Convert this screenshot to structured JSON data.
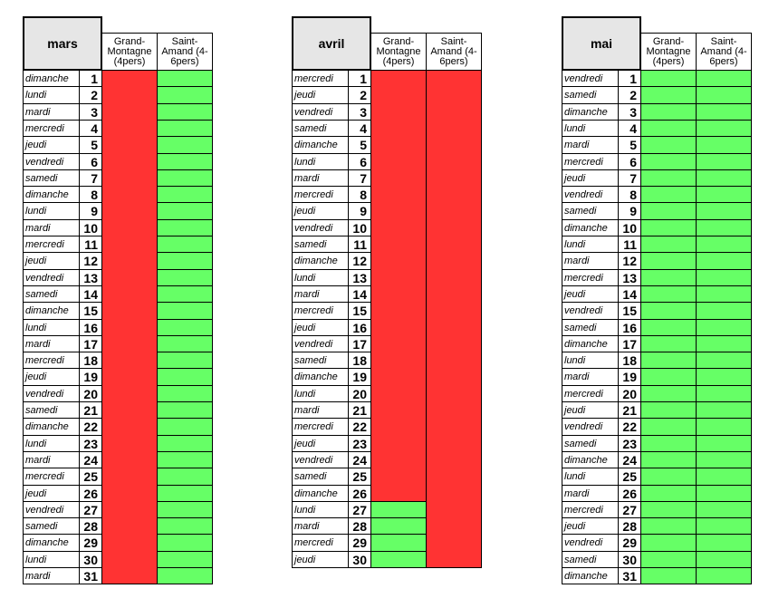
{
  "status_colors": {
    "booked": "#ff3333",
    "free": "#66ff66"
  },
  "months": [
    {
      "title": "mars",
      "rows": [
        [
          "dimanche",
          1
        ],
        [
          "lundi",
          2
        ],
        [
          "mardi",
          3
        ],
        [
          "mercredi",
          4
        ],
        [
          "jeudi",
          5
        ],
        [
          "vendredi",
          6
        ],
        [
          "samedi",
          7
        ],
        [
          "dimanche",
          8
        ],
        [
          "lundi",
          9
        ],
        [
          "mardi",
          10
        ],
        [
          "mercredi",
          11
        ],
        [
          "jeudi",
          12
        ],
        [
          "vendredi",
          13
        ],
        [
          "samedi",
          14
        ],
        [
          "dimanche",
          15
        ],
        [
          "lundi",
          16
        ],
        [
          "mardi",
          17
        ],
        [
          "mercredi",
          18
        ],
        [
          "jeudi",
          19
        ],
        [
          "vendredi",
          20
        ],
        [
          "samedi",
          21
        ],
        [
          "dimanche",
          22
        ],
        [
          "lundi",
          23
        ],
        [
          "mardi",
          24
        ],
        [
          "mercredi",
          25
        ],
        [
          "jeudi",
          26
        ],
        [
          "vendredi",
          27
        ],
        [
          "samedi",
          28
        ],
        [
          "dimanche",
          29
        ],
        [
          "lundi",
          30
        ],
        [
          "mardi",
          31
        ]
      ],
      "columns": [
        {
          "name": "Grand-Montagne (4pers)",
          "status": [
            "booked",
            "booked",
            "booked",
            "booked",
            "booked",
            "booked",
            "booked",
            "booked",
            "booked",
            "booked",
            "booked",
            "booked",
            "booked",
            "booked",
            "booked",
            "booked",
            "booked",
            "booked",
            "booked",
            "booked",
            "booked",
            "booked",
            "booked",
            "booked",
            "booked",
            "booked",
            "booked",
            "booked",
            "booked",
            "booked",
            "booked"
          ]
        },
        {
          "name": "Saint-Amand (4-6pers)",
          "status": [
            "free",
            "free",
            "free",
            "free",
            "free",
            "free",
            "free",
            "free",
            "free",
            "free",
            "free",
            "free",
            "free",
            "free",
            "free",
            "free",
            "free",
            "free",
            "free",
            "free",
            "free",
            "free",
            "free",
            "free",
            "free",
            "free",
            "free",
            "free",
            "free",
            "free",
            "free"
          ]
        }
      ]
    },
    {
      "title": "avril",
      "rows": [
        [
          "mercredi",
          1
        ],
        [
          "jeudi",
          2
        ],
        [
          "vendredi",
          3
        ],
        [
          "samedi",
          4
        ],
        [
          "dimanche",
          5
        ],
        [
          "lundi",
          6
        ],
        [
          "mardi",
          7
        ],
        [
          "mercredi",
          8
        ],
        [
          "jeudi",
          9
        ],
        [
          "vendredi",
          10
        ],
        [
          "samedi",
          11
        ],
        [
          "dimanche",
          12
        ],
        [
          "lundi",
          13
        ],
        [
          "mardi",
          14
        ],
        [
          "mercredi",
          15
        ],
        [
          "jeudi",
          16
        ],
        [
          "vendredi",
          17
        ],
        [
          "samedi",
          18
        ],
        [
          "dimanche",
          19
        ],
        [
          "lundi",
          20
        ],
        [
          "mardi",
          21
        ],
        [
          "mercredi",
          22
        ],
        [
          "jeudi",
          23
        ],
        [
          "vendredi",
          24
        ],
        [
          "samedi",
          25
        ],
        [
          "dimanche",
          26
        ],
        [
          "lundi",
          27
        ],
        [
          "mardi",
          28
        ],
        [
          "mercredi",
          29
        ],
        [
          "jeudi",
          30
        ]
      ],
      "columns": [
        {
          "name": "Grand-Montagne (4pers)",
          "status": [
            "booked",
            "booked",
            "booked",
            "booked",
            "booked",
            "booked",
            "booked",
            "booked",
            "booked",
            "booked",
            "booked",
            "booked",
            "booked",
            "booked",
            "booked",
            "booked",
            "booked",
            "booked",
            "booked",
            "booked",
            "booked",
            "booked",
            "booked",
            "booked",
            "booked",
            "booked",
            "free",
            "free",
            "free",
            "free"
          ]
        },
        {
          "name": "Saint-Amand (4-6pers)",
          "status": [
            "booked",
            "booked",
            "booked",
            "booked",
            "booked",
            "booked",
            "booked",
            "booked",
            "booked",
            "booked",
            "booked",
            "booked",
            "booked",
            "booked",
            "booked",
            "booked",
            "booked",
            "booked",
            "booked",
            "booked",
            "booked",
            "booked",
            "booked",
            "booked",
            "booked",
            "booked",
            "booked",
            "booked",
            "booked",
            "booked"
          ]
        }
      ]
    },
    {
      "title": "mai",
      "rows": [
        [
          "vendredi",
          1
        ],
        [
          "samedi",
          2
        ],
        [
          "dimanche",
          3
        ],
        [
          "lundi",
          4
        ],
        [
          "mardi",
          5
        ],
        [
          "mercredi",
          6
        ],
        [
          "jeudi",
          7
        ],
        [
          "vendredi",
          8
        ],
        [
          "samedi",
          9
        ],
        [
          "dimanche",
          10
        ],
        [
          "lundi",
          11
        ],
        [
          "mardi",
          12
        ],
        [
          "mercredi",
          13
        ],
        [
          "jeudi",
          14
        ],
        [
          "vendredi",
          15
        ],
        [
          "samedi",
          16
        ],
        [
          "dimanche",
          17
        ],
        [
          "lundi",
          18
        ],
        [
          "mardi",
          19
        ],
        [
          "mercredi",
          20
        ],
        [
          "jeudi",
          21
        ],
        [
          "vendredi",
          22
        ],
        [
          "samedi",
          23
        ],
        [
          "dimanche",
          24
        ],
        [
          "lundi",
          25
        ],
        [
          "mardi",
          26
        ],
        [
          "mercredi",
          27
        ],
        [
          "jeudi",
          28
        ],
        [
          "vendredi",
          29
        ],
        [
          "samedi",
          30
        ],
        [
          "dimanche",
          31
        ]
      ],
      "columns": [
        {
          "name": "Grand-Montagne (4pers)",
          "status": [
            "free",
            "free",
            "free",
            "free",
            "free",
            "free",
            "free",
            "free",
            "free",
            "free",
            "free",
            "free",
            "free",
            "free",
            "free",
            "free",
            "free",
            "free",
            "free",
            "free",
            "free",
            "free",
            "free",
            "free",
            "free",
            "free",
            "free",
            "free",
            "free",
            "free",
            "free"
          ]
        },
        {
          "name": "Saint-Amand (4-6pers)",
          "status": [
            "free",
            "free",
            "free",
            "free",
            "free",
            "free",
            "free",
            "free",
            "free",
            "free",
            "free",
            "free",
            "free",
            "free",
            "free",
            "free",
            "free",
            "free",
            "free",
            "free",
            "free",
            "free",
            "free",
            "free",
            "free",
            "free",
            "free",
            "free",
            "free",
            "free",
            "free"
          ]
        }
      ]
    }
  ]
}
